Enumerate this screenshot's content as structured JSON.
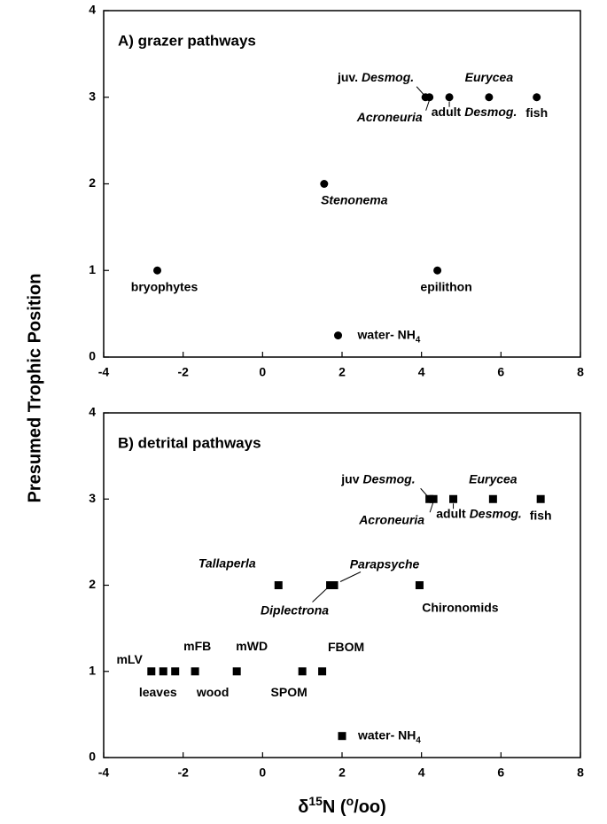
{
  "chart_data": [
    {
      "type": "scatter",
      "title": "A) grazer pathways",
      "marker": "circle",
      "color": "#000000",
      "ylabel": "Presumed Trophic Position",
      "x": [
        -2.65,
        1.55,
        4.4,
        1.9,
        4.1,
        4.2,
        4.7,
        5.7,
        6.9
      ],
      "y": [
        1,
        2,
        1,
        0.25,
        3,
        3,
        3,
        3,
        3
      ],
      "point_labels": [
        [
          "bryophytes"
        ],
        [
          "Stenonema"
        ],
        [
          "epilithon"
        ],
        [
          "water- NH",
          "4"
        ],
        [
          "juv.",
          "Desmog."
        ],
        [
          "Acroneuria"
        ],
        [
          "adult",
          "Desmog."
        ],
        [
          "Eurycea"
        ],
        [
          "fish"
        ]
      ],
      "point_label_styles": [
        [
          "normal"
        ],
        [
          "italic"
        ],
        [
          "normal"
        ],
        [
          "normal",
          "sub"
        ],
        [
          "normal",
          "italic"
        ],
        [
          "italic"
        ],
        [
          "normal",
          "italic"
        ],
        [
          "italic"
        ],
        [
          "normal"
        ]
      ],
      "xlim": [
        -4,
        8
      ],
      "ylim": [
        0,
        4
      ],
      "xticks": [
        -4,
        -2,
        0,
        2,
        4,
        6,
        8
      ],
      "yticks": [
        0,
        1,
        2,
        3,
        4
      ]
    },
    {
      "type": "scatter",
      "title": "B) detrital pathways",
      "marker": "square",
      "color": "#000000",
      "xlabel": [
        "δ",
        "15",
        "N (",
        "o",
        "/oo)"
      ],
      "xlabel_styles": [
        "normal",
        "sup",
        "normal",
        "sup",
        "normal"
      ],
      "x": [
        -2.8,
        -2.5,
        -2.2,
        -1.7,
        -0.65,
        1.0,
        1.5,
        0.4,
        1.7,
        1.8,
        3.95,
        4.2,
        4.3,
        4.8,
        5.8,
        7.0,
        2.0
      ],
      "y": [
        1,
        1,
        1,
        1,
        1,
        1,
        1,
        2,
        2,
        2,
        2,
        3,
        3,
        3,
        3,
        3,
        0.25
      ],
      "point_labels": [
        [
          "mLV"
        ],
        [
          "leaves"
        ],
        [
          "mFB"
        ],
        [
          "wood"
        ],
        [
          "mWD"
        ],
        [
          "SPOM"
        ],
        [
          "FBOM"
        ],
        [
          "Tallaperla"
        ],
        [
          "Diplectrona"
        ],
        [
          "Parapsyche"
        ],
        [
          "Chironomids"
        ],
        [
          "juv",
          "Desmog."
        ],
        [
          "Acroneuria"
        ],
        [
          "adult",
          "Desmog."
        ],
        [
          "Eurycea"
        ],
        [
          "fish"
        ],
        [
          "water- NH",
          "4"
        ]
      ],
      "point_label_styles": [
        [
          "normal"
        ],
        [
          "normal"
        ],
        [
          "normal"
        ],
        [
          "normal"
        ],
        [
          "normal"
        ],
        [
          "normal"
        ],
        [
          "normal"
        ],
        [
          "italic"
        ],
        [
          "italic"
        ],
        [
          "italic"
        ],
        [
          "normal"
        ],
        [
          "normal",
          "italic"
        ],
        [
          "italic"
        ],
        [
          "normal",
          "italic"
        ],
        [
          "italic"
        ],
        [
          "normal"
        ],
        [
          "normal",
          "sub"
        ]
      ],
      "xlim": [
        -4,
        8
      ],
      "ylim": [
        0,
        4
      ],
      "xticks": [
        -4,
        -2,
        0,
        2,
        4,
        6,
        8
      ],
      "yticks": [
        0,
        1,
        2,
        3,
        4
      ]
    }
  ]
}
